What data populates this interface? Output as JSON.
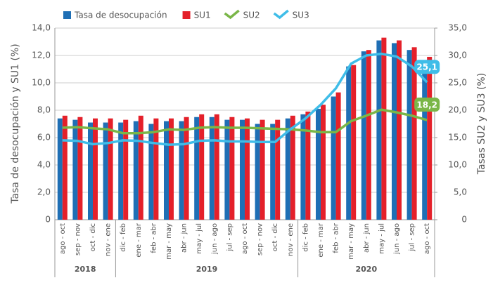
{
  "chart_data": {
    "type": "bar_line",
    "y_label": "Tasa de desocupación y SU1 (%)",
    "y2_label": "Tasas SU2 y SU3 (%)",
    "categories": [
      "ago - oct",
      "sep - nov",
      "oct - dic",
      "nov - ene",
      "dic - feb",
      "ene - mar",
      "feb - abr",
      "mar - may",
      "abr - jun",
      "may - jul",
      "jun - ago",
      "jul - sep",
      "ago - oct",
      "sep - nov",
      "oct - dic",
      "nov - ene",
      "dic - feb",
      "ene - mar",
      "feb - abr",
      "mar - may",
      "abr - jun",
      "may - jul",
      "jun - ago",
      "jul - sep",
      "ago - oct"
    ],
    "groups": [
      {
        "label": "2018",
        "span": 4
      },
      {
        "label": "2019",
        "span": 12
      },
      {
        "label": "2020",
        "span": 9
      }
    ],
    "series": [
      {
        "name": "Tasa de desocupación",
        "kind": "bar",
        "color": "#1f6fb5",
        "values": [
          7.4,
          7.3,
          7.1,
          7.1,
          7.1,
          7.2,
          7.0,
          7.2,
          7.2,
          7.5,
          7.5,
          7.3,
          7.3,
          7.0,
          7.0,
          7.4,
          7.7,
          8.1,
          9.0,
          11.2,
          12.3,
          13.1,
          12.9,
          12.4,
          11.5
        ]
      },
      {
        "name": "SU1",
        "kind": "bar",
        "color": "#e4202a",
        "values": [
          7.6,
          7.5,
          7.4,
          7.4,
          7.3,
          7.6,
          7.4,
          7.4,
          7.5,
          7.7,
          7.7,
          7.5,
          7.4,
          7.3,
          7.3,
          7.6,
          7.9,
          8.4,
          9.3,
          11.3,
          12.4,
          13.3,
          13.1,
          12.6,
          11.9
        ]
      },
      {
        "name": "SU2",
        "kind": "line",
        "axis": "y2",
        "color": "#7ab648",
        "values": [
          16.8,
          16.9,
          16.7,
          16.5,
          15.8,
          15.8,
          16.0,
          16.5,
          16.4,
          16.8,
          16.9,
          16.8,
          16.8,
          16.7,
          16.6,
          16.5,
          16.3,
          16.0,
          16.0,
          18.0,
          19.0,
          20.1,
          19.6,
          19.0,
          18.2
        ],
        "value_labels": [
          null,
          null,
          null,
          null,
          null,
          null,
          null,
          null,
          null,
          null,
          null,
          null,
          null,
          null,
          null,
          null,
          null,
          null,
          null,
          null,
          null,
          null,
          null,
          null,
          "18,2"
        ]
      },
      {
        "name": "SU3",
        "kind": "line",
        "axis": "y2",
        "color": "#3fbde8",
        "values": [
          14.5,
          14.4,
          13.8,
          14.0,
          14.5,
          14.4,
          14.0,
          13.7,
          13.8,
          14.4,
          14.5,
          14.3,
          14.3,
          14.2,
          14.2,
          16.5,
          18.5,
          21.0,
          24.0,
          28.5,
          30.0,
          30.3,
          29.8,
          28.0,
          25.1
        ],
        "value_labels": [
          null,
          null,
          null,
          null,
          null,
          null,
          null,
          null,
          null,
          null,
          null,
          null,
          null,
          null,
          null,
          null,
          null,
          null,
          null,
          null,
          null,
          null,
          null,
          null,
          "25,1"
        ]
      }
    ],
    "ylim": [
      0,
      14
    ],
    "yticks": [
      0,
      {
        "value": 2,
        "label": "2,0"
      },
      {
        "value": 4,
        "label": "4,0"
      },
      {
        "value": 6,
        "label": "6,0"
      },
      {
        "value": 8,
        "label": "8,0"
      },
      {
        "value": 10,
        "label": "10,0"
      },
      {
        "value": 12,
        "label": "12,0"
      },
      {
        "value": 14,
        "label": "14,0"
      }
    ],
    "y2lim": [
      0,
      35
    ],
    "y2ticks": [
      0,
      {
        "value": 5,
        "label": "5,0"
      },
      {
        "value": 10,
        "label": "10,0"
      },
      {
        "value": 15,
        "label": "15,0"
      },
      {
        "value": 20,
        "label": "20,0"
      },
      {
        "value": 25,
        "label": "25,0"
      },
      {
        "value": 30,
        "label": "30,0"
      },
      {
        "value": 35,
        "label": "35,0"
      }
    ],
    "grid": true
  }
}
